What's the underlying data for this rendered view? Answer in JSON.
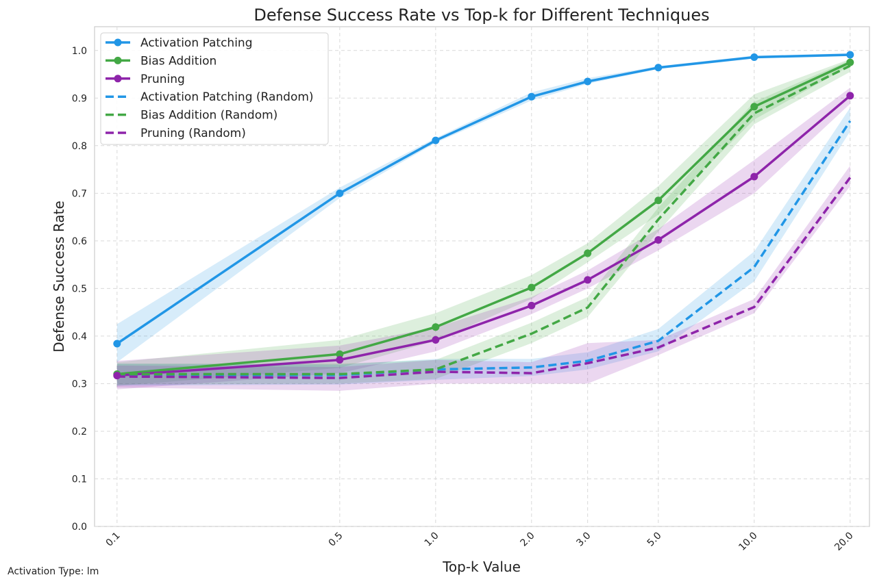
{
  "chart_data": {
    "type": "line",
    "title": "Defense Success Rate vs Top-k for Different Techniques",
    "xlabel": "Top-k Value",
    "ylabel": "Defense Success Rate",
    "x_scale": "log",
    "x": [
      0.1,
      0.5,
      1.0,
      2.0,
      3.0,
      5.0,
      10.0,
      20.0
    ],
    "x_tick_labels": [
      "0.1",
      "0.5",
      "1.0",
      "2.0",
      "3.0",
      "5.0",
      "10.0",
      "20.0"
    ],
    "xlim": [
      0.085,
      23.0
    ],
    "ylim": [
      0.0,
      1.05
    ],
    "y_ticks": [
      0.0,
      0.1,
      0.2,
      0.3,
      0.4,
      0.5,
      0.6,
      0.7,
      0.8,
      0.9,
      1.0
    ],
    "y_tick_labels": [
      "0.0",
      "0.1",
      "0.2",
      "0.3",
      "0.4",
      "0.5",
      "0.6",
      "0.7",
      "0.8",
      "0.9",
      "1.0"
    ],
    "grid": true,
    "legend_position": "top-left",
    "series": [
      {
        "name": "Activation Patching",
        "color": "#2196e6",
        "style": "solid",
        "markers": true,
        "values": [
          0.384,
          0.7,
          0.811,
          0.903,
          0.935,
          0.964,
          0.986,
          0.991
        ],
        "lower": [
          0.345,
          0.69,
          0.806,
          0.895,
          0.93,
          0.961,
          0.983,
          0.988
        ],
        "upper": [
          0.425,
          0.712,
          0.816,
          0.912,
          0.942,
          0.967,
          0.989,
          0.994
        ]
      },
      {
        "name": "Bias Addition",
        "color": "#43a845",
        "style": "solid",
        "markers": true,
        "values": [
          0.32,
          0.362,
          0.419,
          0.502,
          0.574,
          0.685,
          0.882,
          0.975
        ],
        "lower": [
          0.295,
          0.333,
          0.39,
          0.478,
          0.555,
          0.655,
          0.855,
          0.968
        ],
        "upper": [
          0.345,
          0.392,
          0.448,
          0.528,
          0.595,
          0.715,
          0.908,
          0.982
        ]
      },
      {
        "name": "Pruning",
        "color": "#8e24aa",
        "style": "solid",
        "markers": true,
        "values": [
          0.317,
          0.35,
          0.392,
          0.464,
          0.518,
          0.602,
          0.735,
          0.905
        ],
        "lower": [
          0.288,
          0.322,
          0.368,
          0.446,
          0.5,
          0.58,
          0.7,
          0.888
        ],
        "upper": [
          0.348,
          0.38,
          0.418,
          0.482,
          0.538,
          0.625,
          0.77,
          0.922
        ]
      },
      {
        "name": "Activation Patching (Random)",
        "color": "#2196e6",
        "style": "dashed",
        "markers": false,
        "values": [
          0.318,
          0.318,
          0.33,
          0.334,
          0.348,
          0.39,
          0.545,
          0.852
        ],
        "lower": [
          0.296,
          0.298,
          0.308,
          0.316,
          0.33,
          0.368,
          0.515,
          0.83
        ],
        "upper": [
          0.342,
          0.34,
          0.352,
          0.352,
          0.366,
          0.415,
          0.578,
          0.88
        ]
      },
      {
        "name": "Bias Addition (Random)",
        "color": "#43a845",
        "style": "dashed",
        "markers": false,
        "values": [
          0.32,
          0.32,
          0.33,
          0.405,
          0.46,
          0.645,
          0.868,
          0.968
        ],
        "lower": [
          0.298,
          0.3,
          0.31,
          0.385,
          0.44,
          0.62,
          0.845,
          0.955
        ],
        "upper": [
          0.342,
          0.342,
          0.35,
          0.428,
          0.482,
          0.67,
          0.892,
          0.98
        ]
      },
      {
        "name": "Pruning (Random)",
        "color": "#8e24aa",
        "style": "dashed",
        "markers": false,
        "values": [
          0.315,
          0.312,
          0.325,
          0.322,
          0.343,
          0.376,
          0.461,
          0.733
        ],
        "lower": [
          0.292,
          0.285,
          0.3,
          0.3,
          0.3,
          0.36,
          0.448,
          0.715
        ],
        "upper": [
          0.338,
          0.335,
          0.35,
          0.345,
          0.385,
          0.392,
          0.478,
          0.758
        ]
      }
    ]
  },
  "footer": {
    "note": "Activation Type: lm"
  }
}
